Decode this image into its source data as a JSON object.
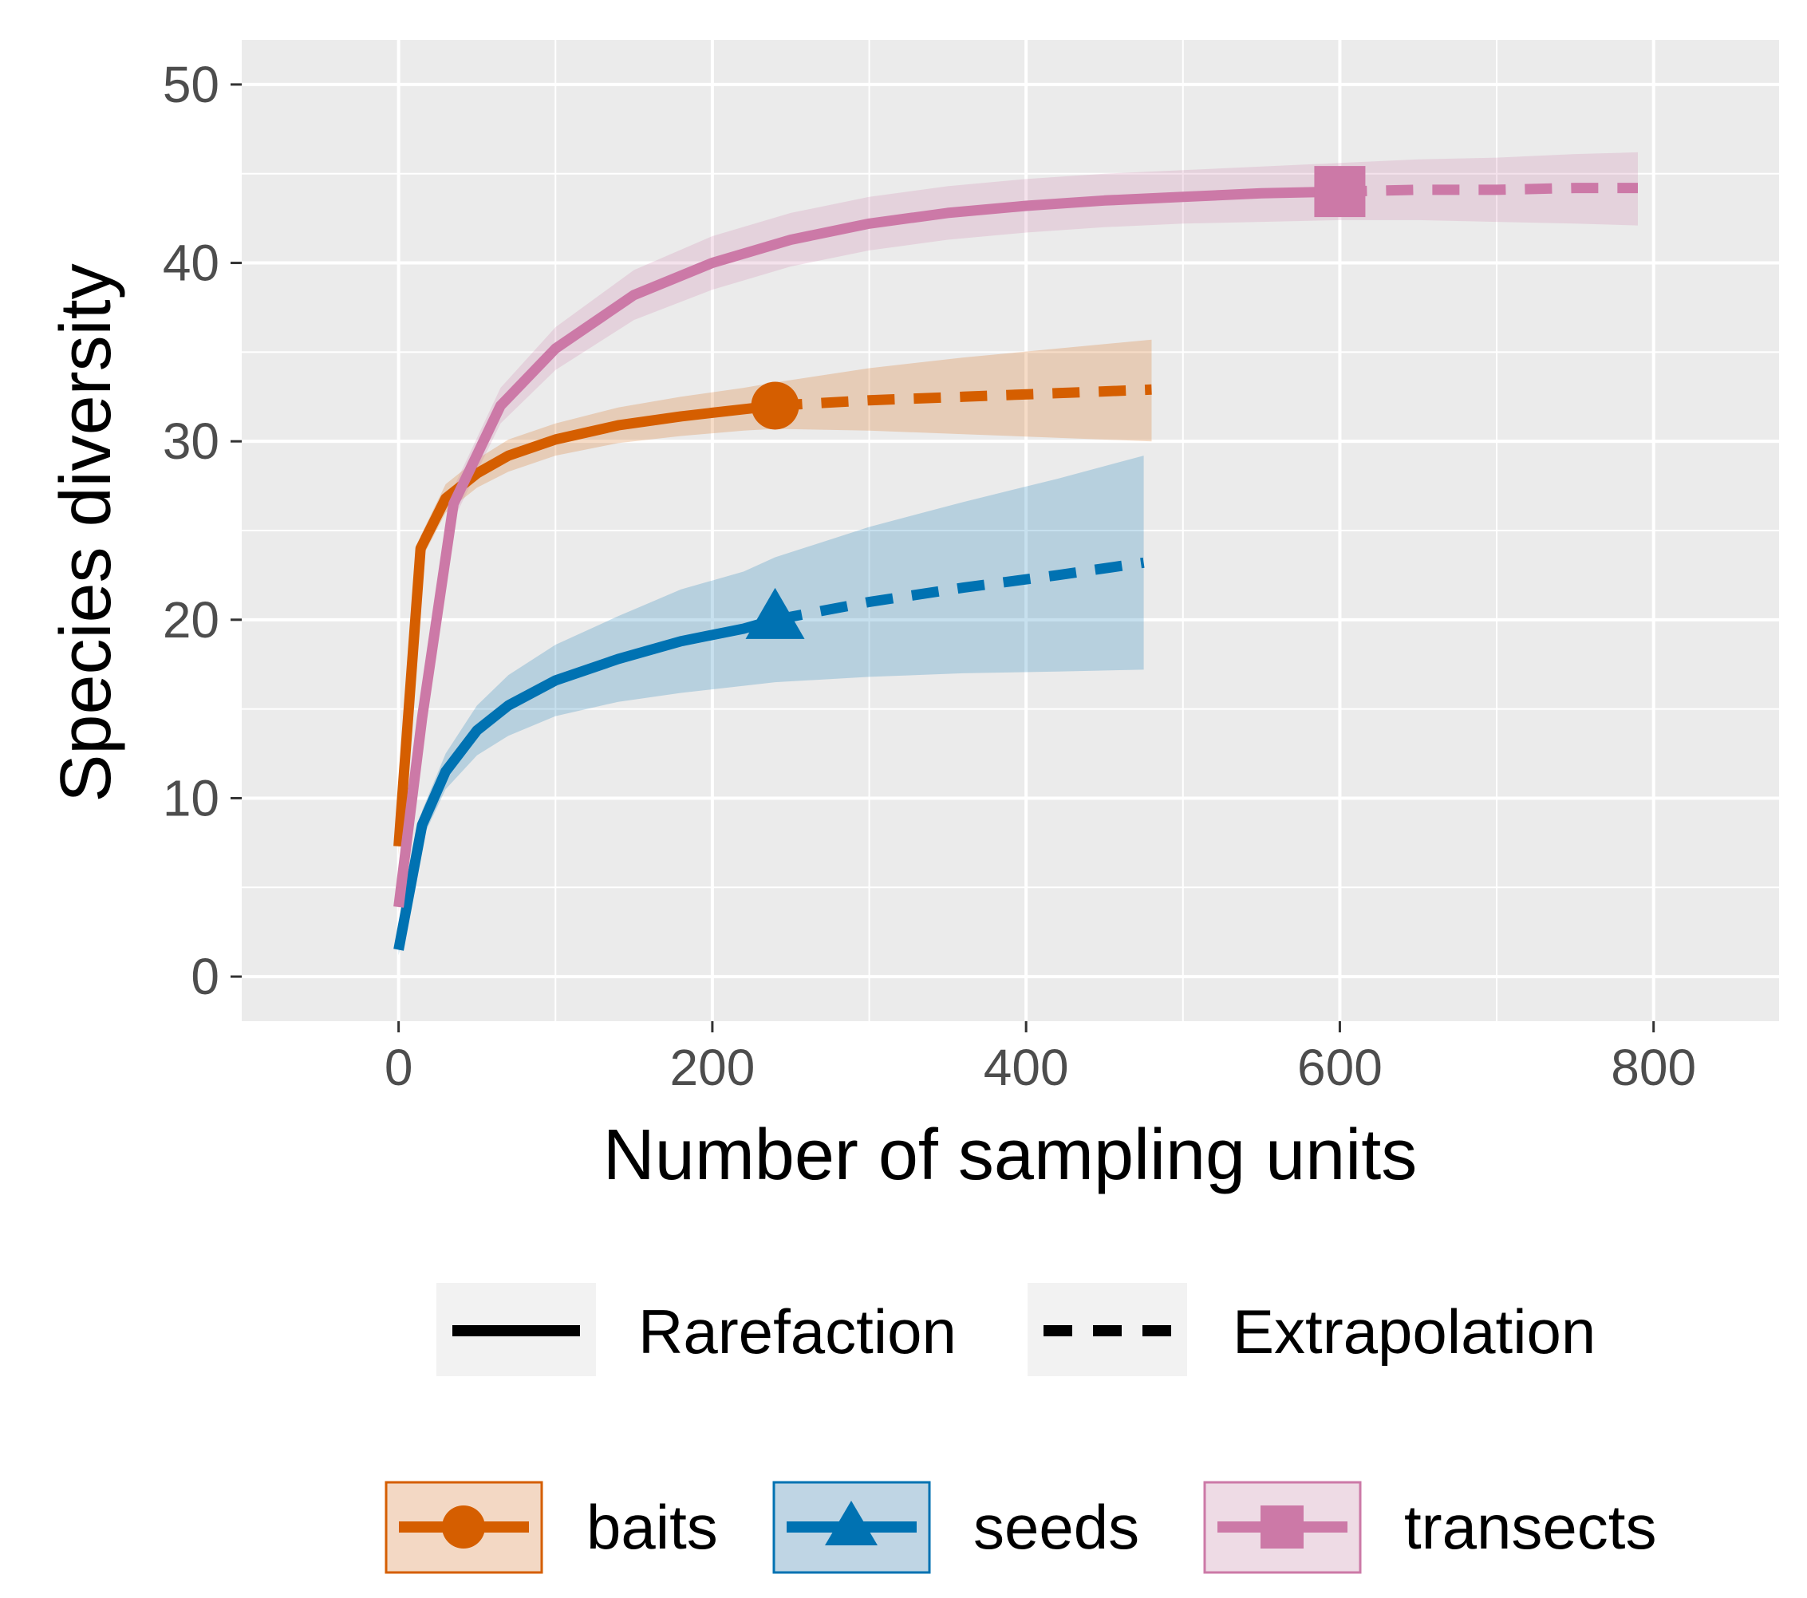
{
  "chart_data": {
    "type": "line",
    "xlabel": "Number of sampling units",
    "ylabel": "Species diversity",
    "xlim": [
      -100,
      880
    ],
    "ylim": [
      -2.5,
      52.5
    ],
    "xticks": [
      0,
      200,
      400,
      600,
      800
    ],
    "yticks": [
      0,
      10,
      20,
      30,
      40,
      50
    ],
    "xtick_labels": [
      "0",
      "200",
      "400",
      "600",
      "800"
    ],
    "ytick_labels": [
      "0",
      "10",
      "20",
      "30",
      "40",
      "50"
    ],
    "grid": true,
    "linetype_legend": [
      {
        "label": "Rarefaction",
        "dash": "solid"
      },
      {
        "label": "Extrapolation",
        "dash": "dashed"
      }
    ],
    "series": [
      {
        "name": "baits",
        "color": "#D55E00",
        "marker": "circle",
        "observed": {
          "x": 240,
          "y": 32
        },
        "rarefaction": {
          "x": [
            0,
            14,
            30,
            50,
            70,
            100,
            140,
            180,
            220,
            240
          ],
          "y": [
            7.3,
            24,
            26.8,
            28.2,
            29.2,
            30.1,
            30.9,
            31.4,
            31.8,
            32
          ]
        },
        "extrapolation": {
          "x": [
            240,
            300,
            360,
            420,
            480
          ],
          "y": [
            32,
            32.3,
            32.5,
            32.7,
            32.9
          ]
        },
        "ci": {
          "x": [
            0,
            14,
            30,
            50,
            70,
            100,
            140,
            180,
            220,
            240,
            300,
            360,
            420,
            480
          ],
          "lower": [
            6.8,
            23.3,
            26.0,
            27.4,
            28.3,
            29.2,
            29.9,
            30.3,
            30.6,
            30.7,
            30.6,
            30.4,
            30.2,
            30.0
          ],
          "upper": [
            7.8,
            24.7,
            27.6,
            29.0,
            30.1,
            31.0,
            31.9,
            32.5,
            33.0,
            33.3,
            34.1,
            34.7,
            35.2,
            35.7
          ]
        }
      },
      {
        "name": "seeds",
        "color": "#0072B2",
        "marker": "triangle",
        "observed": {
          "x": 240,
          "y": 20
        },
        "rarefaction": {
          "x": [
            0,
            15,
            30,
            50,
            70,
            100,
            140,
            180,
            220,
            240
          ],
          "y": [
            1.5,
            8.5,
            11.5,
            13.8,
            15.2,
            16.6,
            17.8,
            18.8,
            19.5,
            20
          ]
        },
        "extrapolation": {
          "x": [
            240,
            300,
            360,
            420,
            475
          ],
          "y": [
            20,
            21,
            21.8,
            22.5,
            23.2
          ]
        },
        "ci": {
          "x": [
            0,
            15,
            30,
            50,
            70,
            100,
            140,
            180,
            220,
            240,
            300,
            360,
            420,
            475
          ],
          "lower": [
            1.2,
            7.7,
            10.5,
            12.4,
            13.5,
            14.6,
            15.4,
            15.9,
            16.3,
            16.5,
            16.8,
            17.0,
            17.1,
            17.2
          ],
          "upper": [
            1.8,
            9.3,
            12.5,
            15.2,
            16.9,
            18.6,
            20.2,
            21.7,
            22.7,
            23.5,
            25.2,
            26.6,
            27.9,
            29.2
          ]
        }
      },
      {
        "name": "transects",
        "color": "#CC79A7",
        "marker": "square",
        "observed": {
          "x": 600,
          "y": 44
        },
        "rarefaction": {
          "x": [
            0,
            15,
            35,
            65,
            100,
            150,
            200,
            250,
            300,
            350,
            400,
            450,
            500,
            550,
            600
          ],
          "y": [
            3.9,
            14.5,
            26.5,
            32,
            35.2,
            38.2,
            40,
            41.3,
            42.2,
            42.8,
            43.2,
            43.5,
            43.7,
            43.9,
            44
          ]
        },
        "extrapolation": {
          "x": [
            600,
            650,
            700,
            750,
            790
          ],
          "y": [
            44,
            44.1,
            44.1,
            44.2,
            44.2
          ]
        },
        "ci": {
          "x": [
            0,
            15,
            35,
            65,
            100,
            150,
            200,
            250,
            300,
            350,
            400,
            450,
            500,
            550,
            600,
            650,
            700,
            750,
            790
          ],
          "lower": [
            3.6,
            13.8,
            25.6,
            31.0,
            34.0,
            36.8,
            38.5,
            39.8,
            40.7,
            41.3,
            41.7,
            42.0,
            42.2,
            42.3,
            42.4,
            42.4,
            42.3,
            42.2,
            42.1
          ],
          "upper": [
            4.2,
            15.2,
            27.4,
            33.0,
            36.4,
            39.6,
            41.5,
            42.8,
            43.7,
            44.3,
            44.7,
            45.0,
            45.2,
            45.4,
            45.6,
            45.8,
            45.9,
            46.1,
            46.2
          ]
        }
      }
    ]
  }
}
